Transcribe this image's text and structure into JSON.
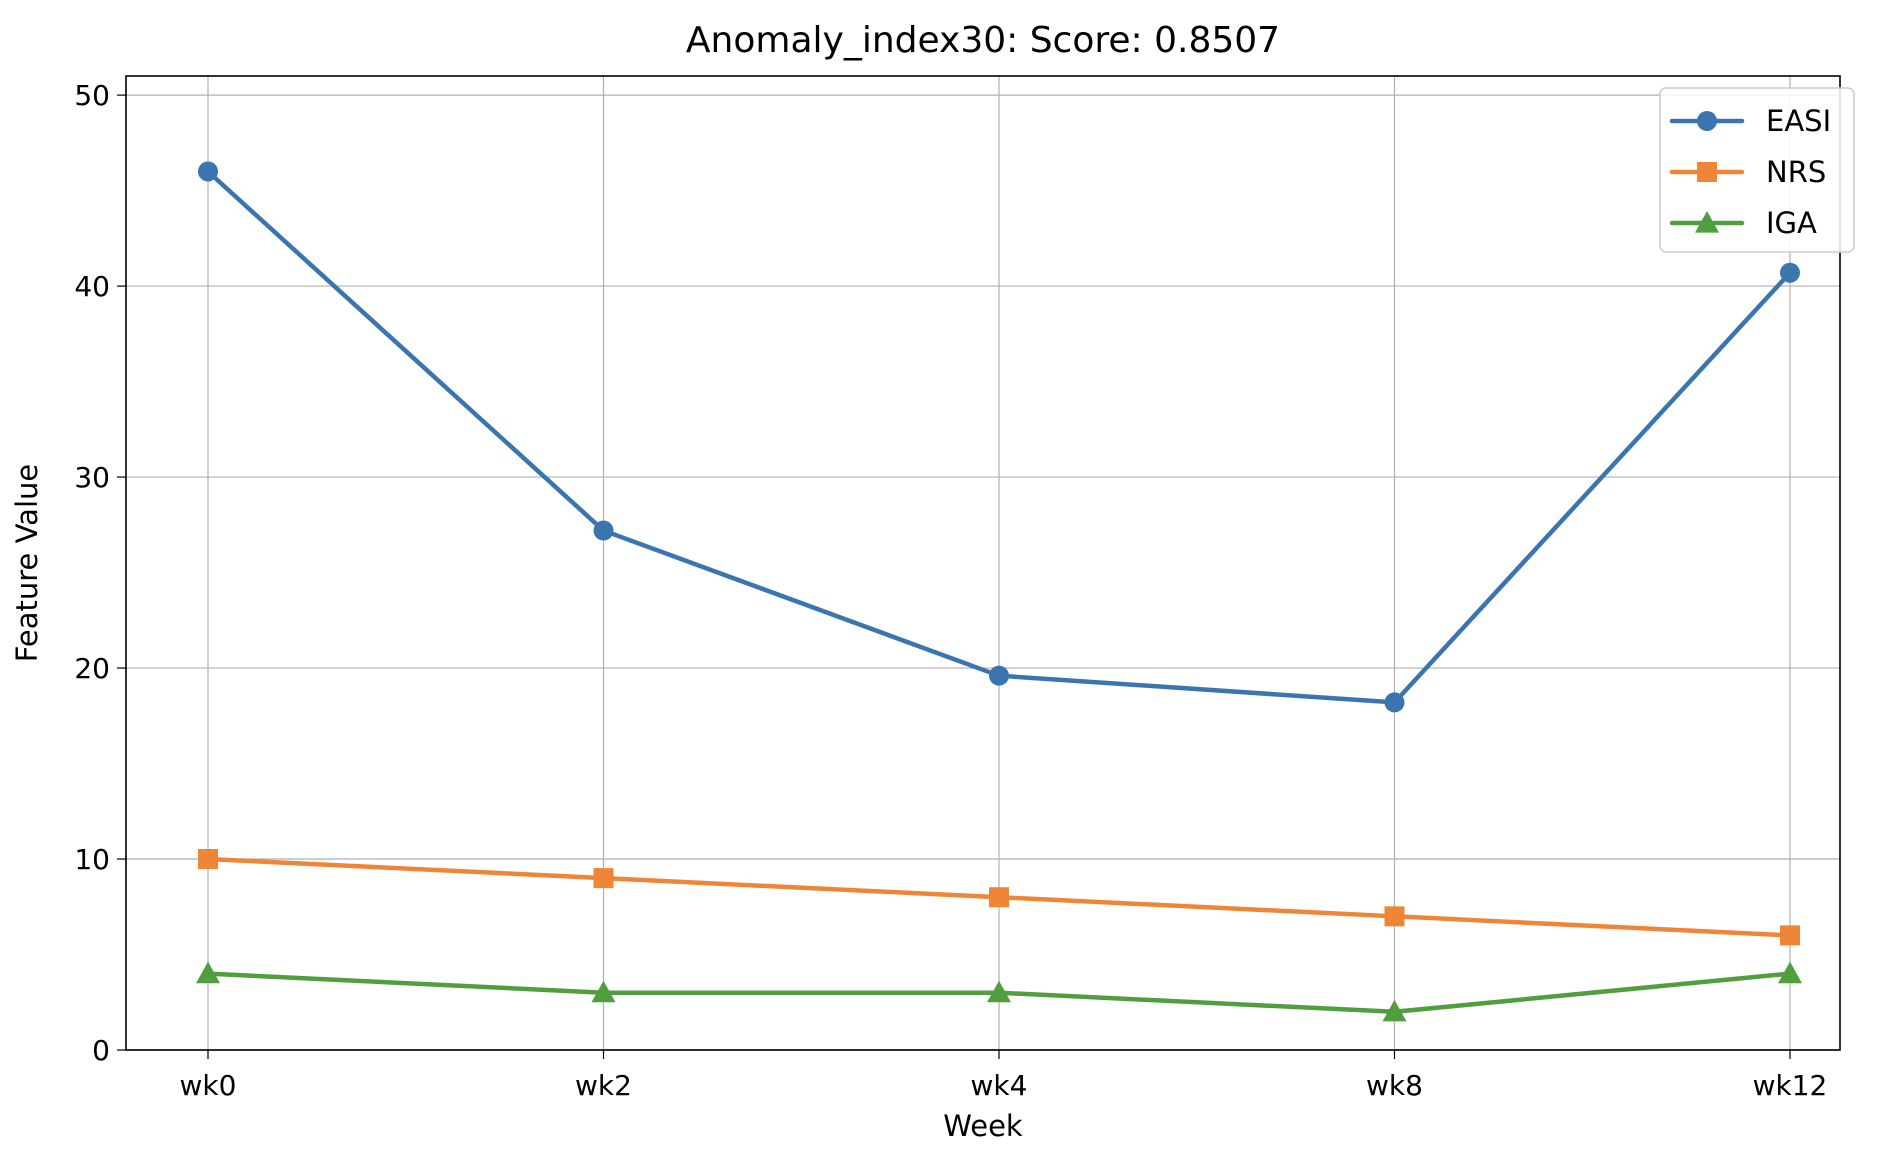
{
  "chart_data": {
    "type": "line",
    "title": "Anomaly_index30: Score: 0.8507",
    "xlabel": "Week",
    "ylabel": "Feature Value",
    "categories": [
      "wk0",
      "wk2",
      "wk4",
      "wk8",
      "wk12"
    ],
    "ylim": [
      0,
      51
    ],
    "yticks": [
      0,
      10,
      20,
      30,
      40,
      50
    ],
    "grid": true,
    "legend_position": "top-right",
    "series": [
      {
        "name": "EASI",
        "values": [
          46.0,
          27.2,
          19.6,
          18.2,
          40.7
        ],
        "color": "#3b75af",
        "marker": "circle"
      },
      {
        "name": "NRS",
        "values": [
          10,
          9,
          8,
          7,
          6
        ],
        "color": "#ef8536",
        "marker": "square"
      },
      {
        "name": "IGA",
        "values": [
          4,
          3,
          3,
          2,
          4
        ],
        "color": "#519e3e",
        "marker": "triangle"
      }
    ]
  }
}
